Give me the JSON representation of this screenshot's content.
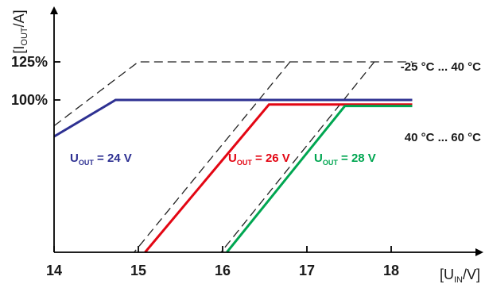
{
  "chart_data": {
    "type": "line",
    "x_axis": {
      "label_main": "[U",
      "label_sub": "IN",
      "label_end": "/V]",
      "ticks": [
        14,
        15,
        16,
        17,
        18
      ],
      "range": [
        14,
        18.9
      ]
    },
    "y_axis": {
      "label_main": "[I",
      "label_sub": "OUT",
      "label_end": "/A]",
      "ticks": [
        {
          "value": 100,
          "label": "100%"
        },
        {
          "value": 125,
          "label": "125%"
        }
      ],
      "range": [
        0,
        145
      ]
    },
    "annotations": {
      "upper": "-25 °C ... 40 °C",
      "lower": "40 °C ... 60 °C"
    },
    "colors": {
      "blue": "#2e3192",
      "red": "#e30613",
      "green": "#00a651",
      "dashed": "#222222",
      "axis": "#000000"
    },
    "series": [
      {
        "label_main": "U",
        "label_sub": "OUT",
        "label_end": " = 24 V",
        "color": "#2e3192",
        "style": "solid",
        "points": [
          [
            14,
            76
          ],
          [
            14.73,
            100
          ],
          [
            18.25,
            100
          ]
        ]
      },
      {
        "label_main": "U",
        "label_sub": "OUT",
        "label_end": " = 26 V",
        "color": "#e30613",
        "style": "solid",
        "points": [
          [
            15.08,
            0
          ],
          [
            16.55,
            97
          ],
          [
            18.25,
            97
          ]
        ]
      },
      {
        "label_main": "U",
        "label_sub": "OUT",
        "label_end": " = 28 V",
        "color": "#00a651",
        "style": "solid",
        "points": [
          [
            16.05,
            0
          ],
          [
            17.45,
            96
          ],
          [
            18.25,
            96
          ]
        ]
      },
      {
        "name": "",
        "color": "#222222",
        "style": "dashed",
        "points": [
          [
            14,
            83
          ],
          [
            15.0,
            125
          ],
          [
            18.25,
            125
          ]
        ]
      },
      {
        "name": "",
        "color": "#222222",
        "style": "dashed",
        "points": [
          [
            16.8,
            125
          ],
          [
            14.95,
            0
          ]
        ]
      },
      {
        "name": "",
        "color": "#222222",
        "style": "dashed",
        "points": [
          [
            17.8,
            125
          ],
          [
            15.98,
            0
          ]
        ]
      },
      {
        "name": "",
        "color": "#222222",
        "style": "dashed",
        "points": [
          [
            16.45,
            100
          ],
          [
            18.25,
            100
          ]
        ]
      },
      {
        "name": "",
        "color": "#222222",
        "style": "dashed",
        "points": [
          [
            17.45,
            100
          ],
          [
            18.25,
            100
          ]
        ]
      }
    ]
  }
}
